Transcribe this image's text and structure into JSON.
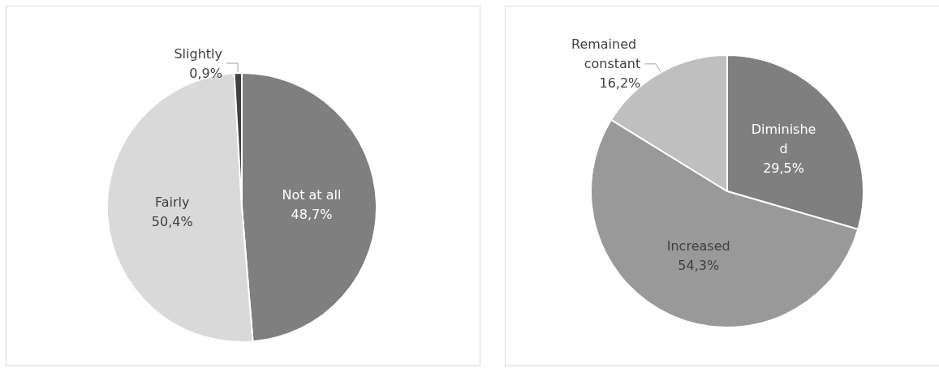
{
  "chart_data": [
    {
      "type": "pie",
      "categories": [
        "Not at all",
        "Fairly",
        "Slightly"
      ],
      "values": [
        48.7,
        50.4,
        0.9
      ],
      "colors": [
        "#7f7f7f",
        "#d9d9d9",
        "#404040"
      ],
      "value_labels": [
        "48,7%",
        "50,4%",
        "0,9%"
      ]
    },
    {
      "type": "pie",
      "categories": [
        "Diminished",
        "Increased",
        "Remained constant"
      ],
      "values": [
        29.5,
        54.3,
        16.2
      ],
      "colors": [
        "#7f7f7f",
        "#999999",
        "#bfbfbf"
      ],
      "value_labels": [
        "29,5%",
        "54,3%",
        "16,2%"
      ]
    }
  ]
}
